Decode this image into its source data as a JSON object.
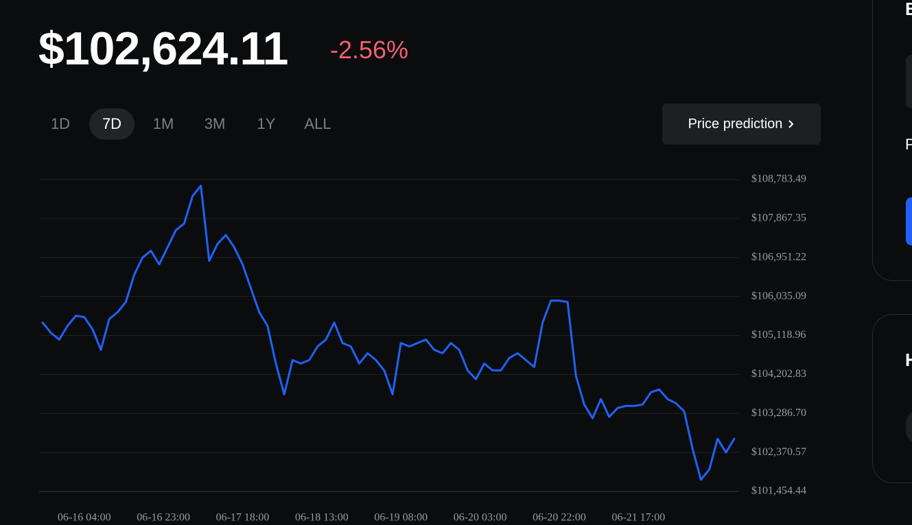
{
  "header": {
    "price": "$102,624.11",
    "change": "-2.56%"
  },
  "ranges": [
    "1D",
    "7D",
    "1M",
    "3M",
    "1Y",
    "ALL"
  ],
  "selected_range_index": 1,
  "prediction_button": "Price prediction",
  "sidebar": {
    "card_1_heading": "B",
    "card_1_label": "P",
    "card_2_heading": "H"
  },
  "chart_data": {
    "type": "line",
    "x": [
      "06-15 18:00",
      "06-15 20:00",
      "06-15 22:00",
      "06-16 00:00",
      "06-16 02:00",
      "06-16 04:00",
      "06-16 06:00",
      "06-16 08:00",
      "06-16 10:00",
      "06-16 12:00",
      "06-16 14:00",
      "06-16 16:00",
      "06-16 18:00",
      "06-16 20:00",
      "06-16 22:00",
      "06-17 00:00",
      "06-17 02:00",
      "06-17 04:00",
      "06-17 06:00",
      "06-17 08:00",
      "06-17 10:00",
      "06-17 12:00",
      "06-17 14:00",
      "06-17 16:00",
      "06-17 18:00",
      "06-17 20:00",
      "06-17 22:00",
      "06-18 00:00",
      "06-18 02:00",
      "06-18 04:00",
      "06-18 06:00",
      "06-18 08:00",
      "06-18 10:00",
      "06-18 12:00",
      "06-18 14:00",
      "06-18 16:00",
      "06-18 18:00",
      "06-18 20:00",
      "06-18 22:00",
      "06-19 00:00",
      "06-19 02:00",
      "06-19 04:00",
      "06-19 06:00",
      "06-19 08:00",
      "06-19 10:00",
      "06-19 12:00",
      "06-19 14:00",
      "06-19 16:00",
      "06-19 18:00",
      "06-19 20:00",
      "06-19 22:00",
      "06-20 00:00",
      "06-20 02:00",
      "06-20 04:00",
      "06-20 06:00",
      "06-20 08:00",
      "06-20 10:00",
      "06-20 12:00",
      "06-20 14:00",
      "06-20 16:00",
      "06-20 18:00",
      "06-20 20:00",
      "06-20 22:00",
      "06-21 00:00",
      "06-21 02:00",
      "06-21 04:00",
      "06-21 06:00",
      "06-21 08:00",
      "06-21 10:00",
      "06-21 12:00",
      "06-21 14:00",
      "06-21 16:00",
      "06-21 18:00",
      "06-21 20:00",
      "06-21 22:00",
      "06-22 00:00",
      "06-22 02:00",
      "06-22 04:00",
      "06-22 06:00",
      "06-22 08:00",
      "06-22 10:00",
      "06-22 12:00",
      "06-22 14:00",
      "06-22 16:00"
    ],
    "series": [
      {
        "color": "#1f62f5",
        "values": [
          105424,
          105183,
          105022,
          105344,
          105585,
          105553,
          105264,
          104782,
          105505,
          105666,
          105907,
          106550,
          106951,
          107112,
          106791,
          107192,
          107594,
          107755,
          108398,
          108639,
          106871,
          107273,
          107482,
          107192,
          106791,
          106228,
          105666,
          105344,
          104460,
          103737,
          104541,
          104460,
          104541,
          104862,
          105022,
          105424,
          104942,
          104862,
          104460,
          104701,
          104541,
          104299,
          103737,
          104942,
          104862,
          104942,
          105022,
          104782,
          104701,
          104942,
          104782,
          104299,
          104090,
          104460,
          104299,
          104299,
          104589,
          104701,
          104541,
          104380,
          105424,
          105939,
          105939,
          105907,
          104171,
          103496,
          103174,
          103624,
          103207,
          103415,
          103464,
          103464,
          103496,
          103785,
          103849,
          103624,
          103528,
          103335,
          102451,
          101728,
          101969,
          102692,
          102371,
          102692
        ]
      }
    ],
    "xlim": [
      "06-15 18:00",
      "06-22 16:00"
    ],
    "xticks": [
      "06-16 04:00",
      "06-16 23:00",
      "06-17 18:00",
      "06-18 13:00",
      "06-19 08:00",
      "06-20 03:00",
      "06-20 22:00",
      "06-21 17:00"
    ],
    "ylim": [
      101454.44,
      108783.49
    ],
    "yticks": [
      {
        "value": 108783.49,
        "label": "$108,783.49"
      },
      {
        "value": 107867.35,
        "label": "$107,867.35"
      },
      {
        "value": 106951.22,
        "label": "$106,951.22"
      },
      {
        "value": 106035.09,
        "label": "$106,035.09"
      },
      {
        "value": 105118.96,
        "label": "$105,118.96"
      },
      {
        "value": 104202.83,
        "label": "$104,202.83"
      },
      {
        "value": 103286.7,
        "label": "$103,286.70"
      },
      {
        "value": 102370.57,
        "label": "$102,370.57"
      },
      {
        "value": 101454.44,
        "label": "$101,454.44"
      }
    ],
    "grid": true
  }
}
